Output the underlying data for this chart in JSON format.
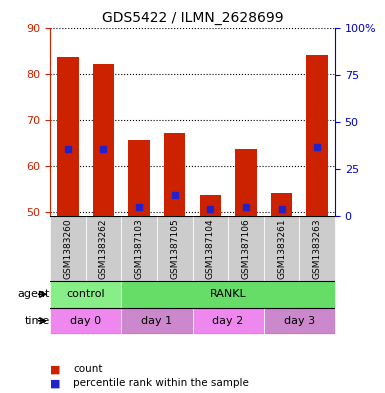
{
  "title": "GDS5422 / ILMN_2628699",
  "samples": [
    "GSM1383260",
    "GSM1383262",
    "GSM1387103",
    "GSM1387105",
    "GSM1387104",
    "GSM1387106",
    "GSM1383261",
    "GSM1383263"
  ],
  "counts": [
    83.5,
    82.0,
    65.5,
    67.0,
    53.5,
    63.5,
    54.0,
    84.0
  ],
  "percentile_values": [
    63.5,
    63.5,
    51.0,
    53.5,
    50.5,
    51.0,
    50.5,
    64.0
  ],
  "ylim_left": [
    49,
    90
  ],
  "ylim_right": [
    0,
    100
  ],
  "yticks_left": [
    50,
    60,
    70,
    80,
    90
  ],
  "yticks_right": [
    0,
    25,
    50,
    75,
    100
  ],
  "ytick_labels_right": [
    "0",
    "25",
    "50",
    "75",
    "100%"
  ],
  "bar_color": "#cc2200",
  "percentile_color": "#2222cc",
  "agent_labels": [
    {
      "text": "control",
      "start": 0,
      "end": 2,
      "color": "#88ee88"
    },
    {
      "text": "RANKL",
      "start": 2,
      "end": 8,
      "color": "#66dd66"
    }
  ],
  "time_labels": [
    {
      "text": "day 0",
      "start": 0,
      "end": 2,
      "color": "#ee88ee"
    },
    {
      "text": "day 1",
      "start": 2,
      "end": 4,
      "color": "#cc88cc"
    },
    {
      "text": "day 2",
      "start": 4,
      "end": 6,
      "color": "#ee88ee"
    },
    {
      "text": "day 3",
      "start": 6,
      "end": 8,
      "color": "#cc88cc"
    }
  ],
  "legend_items": [
    {
      "color": "#cc2200",
      "label": "count"
    },
    {
      "color": "#2222cc",
      "label": "percentile rank within the sample"
    }
  ],
  "background_color": "#ffffff",
  "plot_bg_color": "#ffffff",
  "grid_color": "#000000",
  "tick_color_left": "#cc2200",
  "tick_color_right": "#0000cc"
}
